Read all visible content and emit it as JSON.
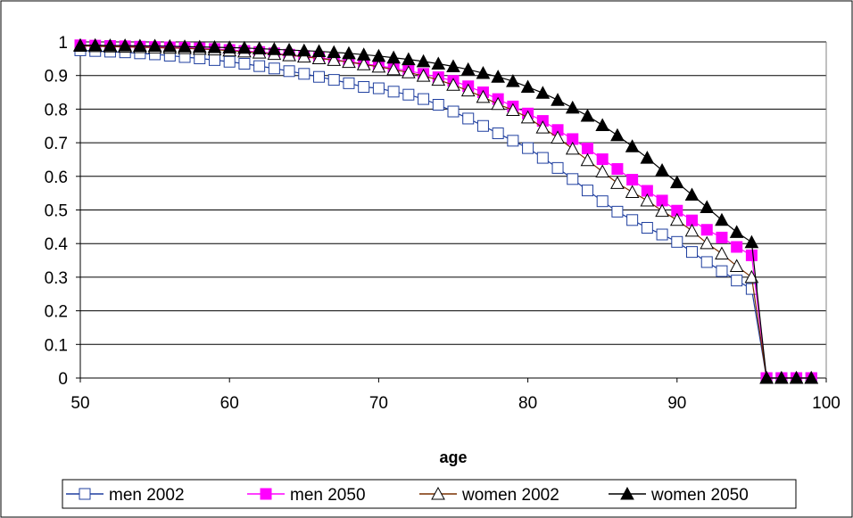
{
  "chart_data": {
    "type": "line",
    "title": "",
    "xlabel": "age",
    "ylabel": "",
    "xlim": [
      50,
      100
    ],
    "ylim": [
      0,
      1
    ],
    "x_ticks": [
      50,
      60,
      70,
      80,
      90,
      100
    ],
    "y_ticks": [
      0,
      0.1,
      0.2,
      0.3,
      0.4,
      0.5,
      0.6,
      0.7,
      0.8,
      0.9,
      1
    ],
    "x_tick_labels": [
      "50",
      "60",
      "70",
      "80",
      "90",
      "100"
    ],
    "y_tick_labels": [
      "0",
      "0.1",
      "0.2",
      "0.3",
      "0.4",
      "0.5",
      "0.6",
      "0.7",
      "0.8",
      "0.9",
      "1"
    ],
    "grid": "horizontal",
    "legend_position": "bottom",
    "x": [
      50,
      51,
      52,
      53,
      54,
      55,
      56,
      57,
      58,
      59,
      60,
      61,
      62,
      63,
      64,
      65,
      66,
      67,
      68,
      69,
      70,
      71,
      72,
      73,
      74,
      75,
      76,
      77,
      78,
      79,
      80,
      81,
      82,
      83,
      84,
      85,
      86,
      87,
      88,
      89,
      90,
      91,
      92,
      93,
      94,
      95,
      96,
      97,
      98,
      99
    ],
    "series": [
      {
        "name": "men 2002",
        "color": "#1f3f9f",
        "marker": "square-open",
        "values": [
          0.975,
          0.973,
          0.971,
          0.969,
          0.966,
          0.963,
          0.959,
          0.955,
          0.951,
          0.946,
          0.941,
          0.935,
          0.928,
          0.921,
          0.913,
          0.905,
          0.896,
          0.887,
          0.877,
          0.866,
          0.862,
          0.852,
          0.843,
          0.83,
          0.813,
          0.793,
          0.772,
          0.75,
          0.728,
          0.706,
          0.684,
          0.655,
          0.625,
          0.592,
          0.558,
          0.526,
          0.495,
          0.47,
          0.447,
          0.427,
          0.405,
          0.375,
          0.345,
          0.318,
          0.29,
          0.265,
          0,
          0,
          0,
          0
        ]
      },
      {
        "name": "men 2050",
        "color": "#ff00ff",
        "marker": "square-filled",
        "values": [
          0.99,
          0.989,
          0.988,
          0.987,
          0.986,
          0.985,
          0.984,
          0.983,
          0.981,
          0.979,
          0.976,
          0.973,
          0.97,
          0.966,
          0.962,
          0.958,
          0.953,
          0.947,
          0.941,
          0.935,
          0.929,
          0.922,
          0.914,
          0.905,
          0.895,
          0.884,
          0.868,
          0.85,
          0.83,
          0.808,
          0.787,
          0.765,
          0.738,
          0.711,
          0.683,
          0.651,
          0.622,
          0.59,
          0.557,
          0.528,
          0.498,
          0.469,
          0.441,
          0.418,
          0.39,
          0.365,
          0,
          0,
          0,
          0
        ]
      },
      {
        "name": "women 2002",
        "color": "#7a3000",
        "marker": "triangle-open",
        "values": [
          0.988,
          0.987,
          0.986,
          0.985,
          0.984,
          0.983,
          0.982,
          0.981,
          0.979,
          0.977,
          0.974,
          0.971,
          0.968,
          0.964,
          0.96,
          0.956,
          0.951,
          0.946,
          0.94,
          0.933,
          0.926,
          0.918,
          0.909,
          0.899,
          0.887,
          0.872,
          0.855,
          0.836,
          0.815,
          0.797,
          0.775,
          0.745,
          0.715,
          0.682,
          0.648,
          0.614,
          0.58,
          0.553,
          0.528,
          0.497,
          0.47,
          0.438,
          0.401,
          0.37,
          0.333,
          0.3,
          0,
          0,
          0,
          0
        ]
      },
      {
        "name": "women 2050",
        "color": "#000000",
        "marker": "triangle-filled",
        "values": [
          0.99,
          0.99,
          0.989,
          0.989,
          0.988,
          0.988,
          0.987,
          0.986,
          0.985,
          0.984,
          0.983,
          0.982,
          0.98,
          0.978,
          0.976,
          0.974,
          0.972,
          0.969,
          0.966,
          0.962,
          0.958,
          0.953,
          0.948,
          0.942,
          0.935,
          0.927,
          0.918,
          0.907,
          0.896,
          0.883,
          0.866,
          0.848,
          0.827,
          0.804,
          0.78,
          0.752,
          0.722,
          0.689,
          0.655,
          0.618,
          0.582,
          0.545,
          0.508,
          0.47,
          0.434,
          0.404,
          0,
          0,
          0,
          0
        ]
      }
    ]
  }
}
